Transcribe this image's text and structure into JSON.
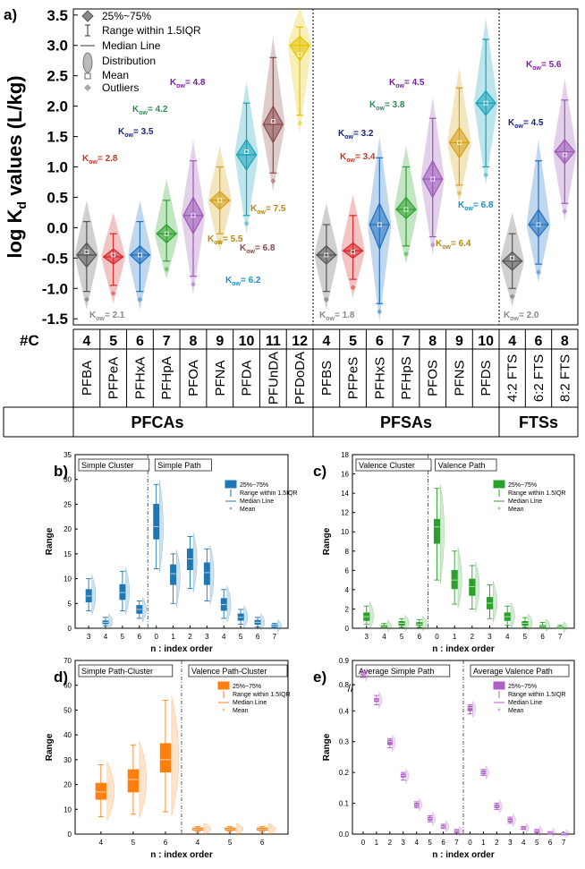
{
  "panel_a": {
    "label": "a)",
    "ylabel": "log K",
    "ylabel_sub": "d",
    "ylabel_tail": " values (L/kg)",
    "legend": [
      "25%~75%",
      "Range within 1.5IQR",
      "Median Line",
      "Distribution",
      "Mean",
      "Outliers"
    ],
    "row_label": "#C",
    "groups": [
      {
        "name": "PFCAs",
        "compounds": [
          {
            "name": "PFBA",
            "c": "4",
            "median": -0.45,
            "q1": -0.65,
            "q3": -0.25,
            "wlo": -1.05,
            "whi": 0.1,
            "mean": -0.4,
            "color": "#555555",
            "kow": "2.1",
            "kowColor": "#888888"
          },
          {
            "name": "PFPeA",
            "c": "5",
            "median": -0.48,
            "q1": -0.6,
            "q3": -0.35,
            "wlo": -0.95,
            "whi": -0.1,
            "mean": -0.45,
            "color": "#d62728",
            "kow": "2.8",
            "kowColor": "#c0392b"
          },
          {
            "name": "PFHxA",
            "c": "6",
            "median": -0.45,
            "q1": -0.6,
            "q3": -0.3,
            "wlo": -1.05,
            "whi": 0.1,
            "mean": -0.45,
            "color": "#1f6fbf",
            "kow": "3.5",
            "kowColor": "#1a237e"
          },
          {
            "name": "PFHpA",
            "c": "7",
            "median": -0.1,
            "q1": -0.25,
            "q3": 0.05,
            "wlo": -0.55,
            "whi": 0.45,
            "mean": -0.1,
            "color": "#2ca02c",
            "kow": "4.2",
            "kowColor": "#2e8b57"
          },
          {
            "name": "PFOA",
            "c": "8",
            "median": 0.2,
            "q1": -0.1,
            "q3": 0.5,
            "wlo": -0.8,
            "whi": 1.1,
            "mean": 0.2,
            "color": "#9b59b6",
            "kow": "4.8",
            "kowColor": "#7b1fa2"
          },
          {
            "name": "PFNA",
            "c": "9",
            "median": 0.45,
            "q1": 0.3,
            "q3": 0.6,
            "wlo": -0.1,
            "whi": 1.0,
            "mean": 0.45,
            "color": "#d4a017",
            "kow": "5.5",
            "kowColor": "#b8860b"
          },
          {
            "name": "PFDA",
            "c": "10",
            "median": 1.2,
            "q1": 0.95,
            "q3": 1.45,
            "wlo": 0.2,
            "whi": 2.05,
            "mean": 1.25,
            "color": "#17a2b8",
            "kow": "6.2",
            "kowColor": "#1e90c0"
          },
          {
            "name": "PFUnDA",
            "c": "11",
            "median": 1.7,
            "q1": 1.4,
            "q3": 2.0,
            "wlo": 0.9,
            "whi": 2.8,
            "mean": 1.75,
            "color": "#8b4a4a",
            "kow": "6.8",
            "kowColor": "#8b4a4a"
          },
          {
            "name": "PFDoDA",
            "c": "12",
            "median": 3.0,
            "q1": 2.75,
            "q3": 3.15,
            "wlo": 1.85,
            "whi": 3.3,
            "mean": 2.85,
            "color": "#e6c200",
            "kow": "7.5",
            "kowColor": "#b8860b"
          }
        ]
      },
      {
        "name": "PFSAs",
        "compounds": [
          {
            "name": "PFBS",
            "c": "4",
            "median": -0.45,
            "q1": -0.6,
            "q3": -0.3,
            "wlo": -1.05,
            "whi": 0.05,
            "mean": -0.45,
            "color": "#555555",
            "kow": "1.8",
            "kowColor": "#888888"
          },
          {
            "name": "PFPeS",
            "c": "5",
            "median": -0.38,
            "q1": -0.5,
            "q3": -0.25,
            "wlo": -0.85,
            "whi": 0.2,
            "mean": -0.4,
            "color": "#d62728",
            "kow": "3.4",
            "kowColor": "#c0392b"
          },
          {
            "name": "PFHxS",
            "c": "6",
            "median": 0.05,
            "q1": -0.35,
            "q3": 0.4,
            "wlo": -1.25,
            "whi": 1.15,
            "mean": 0.05,
            "color": "#1f6fbf",
            "kow": "3.2",
            "kowColor": "#1a237e"
          },
          {
            "name": "PFHpS",
            "c": "7",
            "median": 0.3,
            "q1": 0.15,
            "q3": 0.5,
            "wlo": -0.3,
            "whi": 1.0,
            "mean": 0.3,
            "color": "#2ca02c",
            "kow": "3.8",
            "kowColor": "#2e8b57"
          },
          {
            "name": "PFOS",
            "c": "8",
            "median": 0.8,
            "q1": 0.5,
            "q3": 1.1,
            "wlo": -0.15,
            "whi": 1.8,
            "mean": 0.8,
            "color": "#9b59b6",
            "kow": "4.5",
            "kowColor": "#7b1fa2"
          },
          {
            "name": "PFNS",
            "c": "9",
            "median": 1.4,
            "q1": 1.15,
            "q3": 1.65,
            "wlo": 0.7,
            "whi": 2.3,
            "mean": 1.4,
            "color": "#d4a017",
            "kow": "6.4",
            "kowColor": "#b8860b"
          },
          {
            "name": "PFDS",
            "c": "10",
            "median": 2.05,
            "q1": 1.85,
            "q3": 2.25,
            "wlo": 1.0,
            "whi": 3.1,
            "mean": 2.05,
            "color": "#17a2b8",
            "kow": "6.8",
            "kowColor": "#1e90c0"
          }
        ]
      },
      {
        "name": "FTSs",
        "compounds": [
          {
            "name": "4:2 FTS",
            "c": "4",
            "median": -0.55,
            "q1": -0.7,
            "q3": -0.4,
            "wlo": -1.0,
            "whi": -0.1,
            "mean": -0.5,
            "color": "#555555",
            "kow": "2.0",
            "kowColor": "#888888"
          },
          {
            "name": "6:2 FTS",
            "c": "6",
            "median": 0.05,
            "q1": -0.15,
            "q3": 0.3,
            "wlo": -0.6,
            "whi": 1.1,
            "mean": 0.05,
            "color": "#1f6fbf",
            "kow": "4.5",
            "kowColor": "#1a237e"
          },
          {
            "name": "8:2 FTS",
            "c": "8",
            "median": 1.25,
            "q1": 1.05,
            "q3": 1.45,
            "wlo": 0.4,
            "whi": 2.1,
            "mean": 1.2,
            "color": "#9b59b6",
            "kow": "5.6",
            "kowColor": "#7b1fa2"
          }
        ]
      }
    ],
    "kow_prefix": "K",
    "kow_sub": "ow",
    "kow_eq": "= "
  },
  "chart_data": [
    {
      "type": "violin",
      "title": "log Kd values (L/kg)",
      "ylabel": "log Kd values (L/kg)",
      "ylim": [
        -1.6,
        3.6
      ],
      "yticks": [
        "-1.5",
        "-1.0",
        "-0.5",
        "0.0",
        "0.5",
        "1.0",
        "1.5",
        "2.0",
        "2.5",
        "3.0",
        "3.5"
      ],
      "categories": [
        "PFBA",
        "PFPeA",
        "PFHxA",
        "PFHpA",
        "PFOA",
        "PFNA",
        "PFDA",
        "PFUnDA",
        "PFDoDA",
        "PFBS",
        "PFPeS",
        "PFHxS",
        "PFHpS",
        "PFOS",
        "PFNS",
        "PFDS",
        "4:2 FTS",
        "6:2 FTS",
        "8:2 FTS"
      ],
      "medians": [
        -0.45,
        -0.48,
        -0.45,
        -0.1,
        0.2,
        0.45,
        1.2,
        1.7,
        3.0,
        -0.45,
        -0.38,
        0.05,
        0.3,
        0.8,
        1.4,
        2.05,
        -0.55,
        0.05,
        1.25
      ]
    },
    {
      "type": "box",
      "panel": "b)",
      "xlabel": "n : index order",
      "ylabel": "Range",
      "ylim": [
        0,
        35
      ],
      "yticks": [
        "0",
        "5",
        "10",
        "15",
        "20",
        "25",
        "30",
        "35"
      ],
      "sections": [
        "Simple Cluster",
        "Simple Path"
      ],
      "legend": [
        "25%~75%",
        "Range within 1.5IQR",
        "Median Line",
        "Mean"
      ],
      "color": "#1f77b4",
      "categories": [
        "3",
        "4",
        "5",
        "6",
        "0",
        "1",
        "2",
        "3",
        "4",
        "5",
        "6",
        "7"
      ],
      "medians": [
        6.5,
        1.2,
        7.2,
        3.8,
        20.5,
        11.0,
        14.0,
        11.2,
        4.8,
        2.2,
        1.2,
        0.5
      ],
      "q1": [
        5.3,
        0.9,
        5.8,
        3.0,
        18.0,
        8.8,
        11.8,
        8.8,
        3.6,
        1.6,
        0.8,
        0.3
      ],
      "q3": [
        7.8,
        1.5,
        8.8,
        4.6,
        25.0,
        12.8,
        16.0,
        13.2,
        6.0,
        2.9,
        1.6,
        0.7
      ],
      "wlo": [
        3.5,
        0.5,
        3.5,
        2.0,
        12.0,
        5.0,
        8.0,
        5.5,
        2.0,
        0.8,
        0.3,
        0.1
      ],
      "whi": [
        10.0,
        2.2,
        11.5,
        5.5,
        29.0,
        15.0,
        18.5,
        16.0,
        7.8,
        3.8,
        2.2,
        1.0
      ]
    },
    {
      "type": "box",
      "panel": "c)",
      "xlabel": "n : index order",
      "ylabel": "Range",
      "ylim": [
        0,
        18
      ],
      "yticks": [
        "0",
        "2",
        "4",
        "6",
        "8",
        "10",
        "12",
        "14",
        "16",
        "18"
      ],
      "sections": [
        "Valence Cluster",
        "Valence Path"
      ],
      "legend": [
        "25%~75%",
        "Range within 1.5IQR",
        "Median Line",
        "Mean"
      ],
      "color": "#2ca02c",
      "categories": [
        "3",
        "4",
        "5",
        "6",
        "0",
        "1",
        "2",
        "3",
        "4",
        "5",
        "6",
        "7"
      ],
      "medians": [
        1.2,
        0.2,
        0.5,
        0.4,
        10.5,
        5.0,
        4.3,
        2.6,
        1.2,
        0.5,
        0.2,
        0.1
      ],
      "q1": [
        0.8,
        0.1,
        0.3,
        0.3,
        8.8,
        4.1,
        3.4,
        2.0,
        0.8,
        0.3,
        0.1,
        0.05
      ],
      "q3": [
        1.6,
        0.3,
        0.7,
        0.6,
        11.3,
        6.0,
        5.1,
        3.2,
        1.6,
        0.7,
        0.3,
        0.15
      ],
      "wlo": [
        0.4,
        0.05,
        0.1,
        0.1,
        5.0,
        2.5,
        2.0,
        1.0,
        0.3,
        0.1,
        0.05,
        0.0
      ],
      "whi": [
        2.3,
        0.5,
        1.0,
        0.9,
        14.5,
        8.0,
        6.5,
        4.5,
        2.3,
        1.1,
        0.6,
        0.3
      ]
    },
    {
      "type": "box",
      "panel": "d)",
      "xlabel": "n : index order",
      "ylabel": "Range",
      "ylim": [
        0,
        70
      ],
      "yticks": [
        "0",
        "10",
        "20",
        "30",
        "40",
        "50",
        "60",
        "70"
      ],
      "sections": [
        "Simple Path-Cluster",
        "Valence Path-Cluster"
      ],
      "legend": [
        "25%~75%",
        "Range within 1.5IQR",
        "Median Line",
        "Mean"
      ],
      "color": "#ff7f0e",
      "categories": [
        "4",
        "5",
        "6",
        "4",
        "5",
        "6"
      ],
      "medians": [
        17.0,
        22.0,
        30.0,
        2.0,
        2.0,
        2.0
      ],
      "q1": [
        14.0,
        17.0,
        25.0,
        1.5,
        1.5,
        1.5
      ],
      "q3": [
        20.5,
        26.0,
        36.5,
        2.5,
        2.5,
        2.5
      ],
      "wlo": [
        7.0,
        8.0,
        9.0,
        1.0,
        1.0,
        1.0
      ],
      "whi": [
        28.0,
        36.0,
        54.0,
        3.0,
        3.0,
        3.0
      ]
    },
    {
      "type": "box",
      "panel": "e)",
      "xlabel": "n : index order",
      "ylabel": "Range",
      "ylim": [
        0,
        0.9
      ],
      "yticks": [
        "0.0",
        "0.1",
        "0.2",
        "0.3",
        "0.4",
        "0.8",
        "0.9"
      ],
      "sections": [
        "Average Simple Path",
        "Average Valence Path"
      ],
      "legend": [
        "25%~75%",
        "Range within 1.5IQR",
        "Median Line",
        "Mean"
      ],
      "color": "#b05fc4",
      "categories": [
        "0",
        "1",
        "2",
        "3",
        "4",
        "5",
        "6",
        "7",
        "0",
        "1",
        "2",
        "3",
        "4",
        "5",
        "6",
        "7"
      ],
      "medians": [
        0.845,
        0.435,
        0.3,
        0.19,
        0.095,
        0.05,
        0.025,
        0.01,
        0.41,
        0.2,
        0.09,
        0.045,
        0.02,
        0.01,
        0.005,
        0.002
      ],
      "q1": [
        0.84,
        0.43,
        0.29,
        0.185,
        0.09,
        0.045,
        0.022,
        0.008,
        0.4,
        0.195,
        0.085,
        0.04,
        0.018,
        0.008,
        0.004,
        0.001
      ],
      "q3": [
        0.85,
        0.44,
        0.305,
        0.195,
        0.1,
        0.055,
        0.028,
        0.012,
        0.415,
        0.205,
        0.095,
        0.05,
        0.022,
        0.012,
        0.006,
        0.003
      ],
      "wlo": [
        0.83,
        0.42,
        0.28,
        0.175,
        0.085,
        0.04,
        0.018,
        0.005,
        0.39,
        0.19,
        0.08,
        0.035,
        0.015,
        0.005,
        0.002,
        0.0
      ],
      "whi": [
        0.855,
        0.45,
        0.31,
        0.2,
        0.105,
        0.06,
        0.032,
        0.015,
        0.42,
        0.21,
        0.1,
        0.055,
        0.025,
        0.015,
        0.008,
        0.004
      ]
    }
  ]
}
